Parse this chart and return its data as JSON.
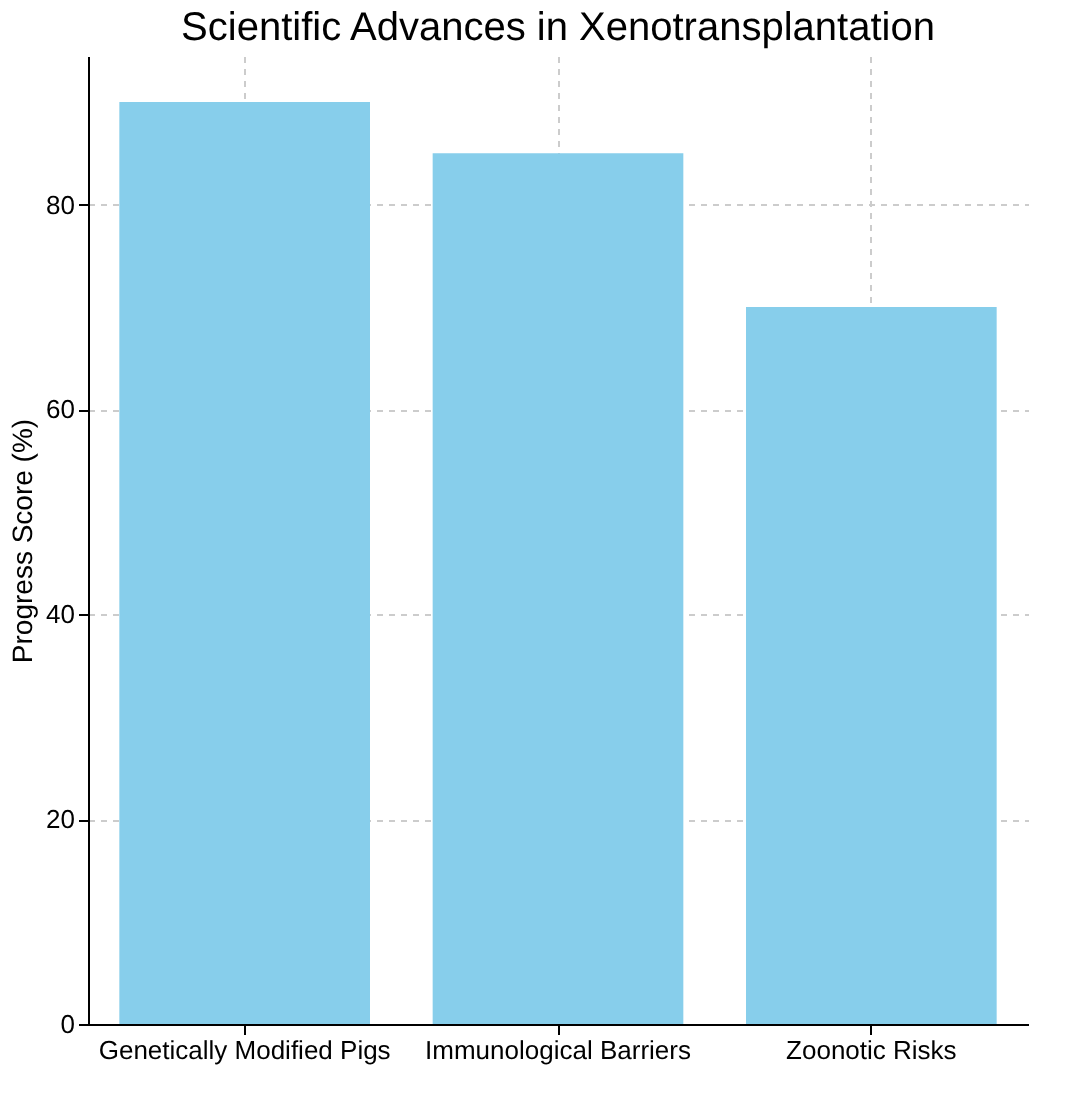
{
  "chart_data": {
    "type": "bar",
    "title": "Scientific Advances in Xenotransplantation",
    "ylabel": "Progress Score (%)",
    "categories": [
      "Genetically Modified Pigs",
      "Immunological Barriers",
      "Zoonotic Risks"
    ],
    "values": [
      90,
      85,
      70
    ],
    "color": "#87ceeb",
    "ylim": [
      0,
      94.5
    ],
    "yticks": [
      0,
      20,
      40,
      60,
      80
    ],
    "grid": true
  }
}
